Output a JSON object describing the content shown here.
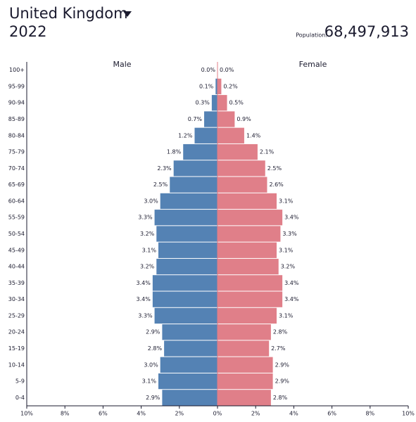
{
  "chart_data": {
    "type": "pyramid",
    "title": "United Kingdom",
    "subtitle": "2022",
    "population_label": "Population:",
    "population": "68,497,913",
    "categories": [
      "100+",
      "95-99",
      "90-94",
      "85-89",
      "80-84",
      "75-79",
      "70-74",
      "65-69",
      "60-64",
      "55-59",
      "50-54",
      "45-49",
      "40-44",
      "35-39",
      "30-34",
      "25-29",
      "20-24",
      "15-19",
      "10-14",
      "5-9",
      "0-4"
    ],
    "series": [
      {
        "name": "Male",
        "color": "#5482b4",
        "side": "left",
        "values": [
          0.0,
          0.1,
          0.3,
          0.7,
          1.2,
          1.8,
          2.3,
          2.5,
          3.0,
          3.3,
          3.2,
          3.1,
          3.2,
          3.4,
          3.4,
          3.3,
          2.9,
          2.8,
          3.0,
          3.1,
          2.9
        ],
        "value_labels": [
          "0.0%",
          "0.1%",
          "0.3%",
          "0.7%",
          "1.2%",
          "1.8%",
          "2.3%",
          "2.5%",
          "3.0%",
          "3.3%",
          "3.2%",
          "3.1%",
          "3.2%",
          "3.4%",
          "3.4%",
          "3.3%",
          "2.9%",
          "2.8%",
          "3.0%",
          "3.1%",
          "2.9%"
        ]
      },
      {
        "name": "Female",
        "color": "#e07f89",
        "side": "right",
        "values": [
          0.0,
          0.2,
          0.5,
          0.9,
          1.4,
          2.1,
          2.5,
          2.6,
          3.1,
          3.4,
          3.3,
          3.1,
          3.2,
          3.4,
          3.4,
          3.1,
          2.8,
          2.7,
          2.9,
          2.9,
          2.8
        ],
        "value_labels": [
          "0.0%",
          "0.2%",
          "0.5%",
          "0.9%",
          "1.4%",
          "2.1%",
          "2.5%",
          "2.6%",
          "3.1%",
          "3.4%",
          "3.3%",
          "3.1%",
          "3.2%",
          "3.4%",
          "3.4%",
          "3.1%",
          "2.8%",
          "2.7%",
          "2.9%",
          "2.9%",
          "2.8%"
        ]
      }
    ],
    "xlim": [
      -10,
      10
    ],
    "xticks": [
      {
        "value": -10,
        "label": "10%"
      },
      {
        "value": -8,
        "label": "8%"
      },
      {
        "value": -6,
        "label": "6%"
      },
      {
        "value": -4,
        "label": "4%"
      },
      {
        "value": -2,
        "label": "2%"
      },
      {
        "value": 0,
        "label": "0%"
      },
      {
        "value": 2,
        "label": "2%"
      },
      {
        "value": 4,
        "label": "4%"
      },
      {
        "value": 6,
        "label": "6%"
      },
      {
        "value": 8,
        "label": "8%"
      },
      {
        "value": 10,
        "label": "10%"
      }
    ]
  }
}
